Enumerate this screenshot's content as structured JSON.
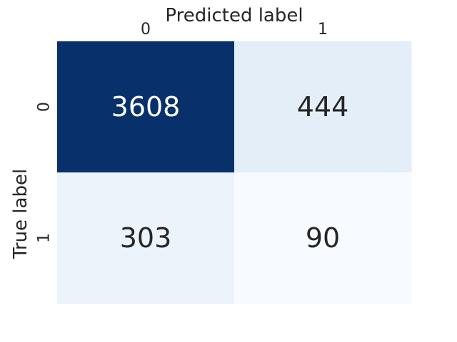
{
  "chart_data": {
    "type": "heatmap",
    "title": "",
    "xlabel": "Predicted label",
    "ylabel": "True label",
    "x_categories": [
      "0",
      "1"
    ],
    "y_categories": [
      "0",
      "1"
    ],
    "values": [
      [
        3608,
        444
      ],
      [
        303,
        90
      ]
    ],
    "colormap": "Blues",
    "colorbar": false,
    "x_axis_position": "top",
    "grid": false
  },
  "colors": {
    "low": "#f7fbff",
    "mid": "#9ecae1",
    "high": "#08306b",
    "text_dark": "#262626",
    "text_light": "#ffffff"
  }
}
